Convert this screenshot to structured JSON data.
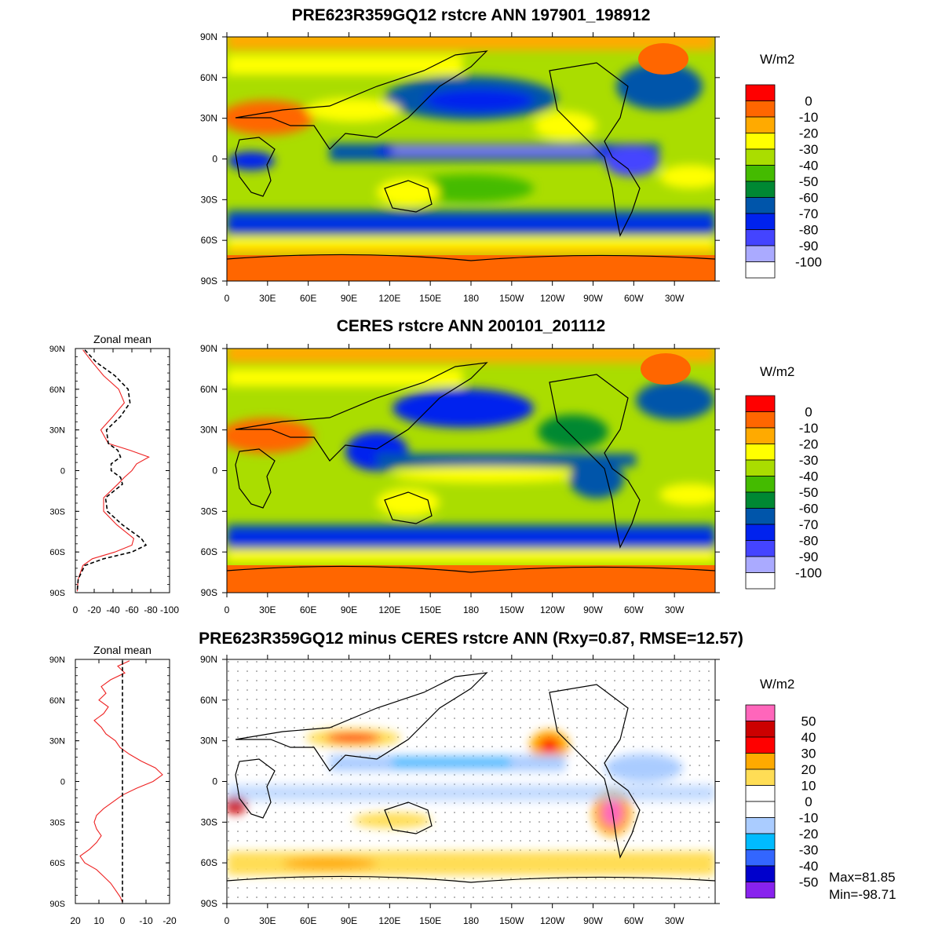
{
  "panels": [
    {
      "title": "PRE623R359GQ12 rstcre ANN 197901_198912",
      "unit": "W/m2",
      "colorbar": {
        "labels": [
          "0",
          "-10",
          "-20",
          "-30",
          "-40",
          "-50",
          "-60",
          "-70",
          "-80",
          "-90",
          "-100"
        ],
        "colors": [
          "#ff0000",
          "#ff6600",
          "#ffaa00",
          "#ffff00",
          "#aadd00",
          "#44bb00",
          "#008833",
          "#0055aa",
          "#0022ee",
          "#4444ff",
          "#aaaaff",
          "#ffffff"
        ]
      }
    },
    {
      "title": "CERES rstcre ANN 200101_201112",
      "unit": "W/m2",
      "colorbar": {
        "labels": [
          "0",
          "-10",
          "-20",
          "-30",
          "-40",
          "-50",
          "-60",
          "-70",
          "-80",
          "-90",
          "-100"
        ],
        "colors": [
          "#ff0000",
          "#ff6600",
          "#ffaa00",
          "#ffff00",
          "#aadd00",
          "#44bb00",
          "#008833",
          "#0055aa",
          "#0022ee",
          "#4444ff",
          "#aaaaff",
          "#ffffff"
        ]
      }
    },
    {
      "title": "PRE623R359GQ12 minus CERES rstcre ANN (Rxy=0.87, RMSE=12.57)",
      "unit": "W/m2",
      "colorbar": {
        "labels": [
          "50",
          "40",
          "30",
          "20",
          "10",
          "0",
          "-10",
          "-20",
          "-30",
          "-40",
          "-50"
        ],
        "colors": [
          "#ff66bb",
          "#cc0000",
          "#ff0000",
          "#ffaa00",
          "#ffdd55",
          "#ffffff",
          "#ffffff",
          "#aaccff",
          "#00bbff",
          "#3366ff",
          "#0000cc",
          "#8822ee"
        ]
      },
      "stats": {
        "max": "Max=81.85",
        "min": "Min=-98.71"
      }
    }
  ],
  "map_axes": {
    "lat_labels": [
      "90N",
      "60N",
      "30N",
      "0",
      "30S",
      "60S",
      "90S"
    ],
    "lon_labels": [
      "0",
      "30E",
      "60E",
      "90E",
      "120E",
      "150E",
      "180",
      "150W",
      "120W",
      "90W",
      "60W",
      "30W"
    ]
  },
  "zonal": [
    {
      "title": "Zonal mean",
      "lat_labels": [
        "90N",
        "60N",
        "30N",
        "0",
        "30S",
        "60S",
        "90S"
      ],
      "x_labels": [
        "0",
        "-20",
        "-40",
        "-60",
        "-80",
        "-100"
      ],
      "xlim": [
        0,
        -100
      ],
      "series": [
        {
          "color": "#ee2222",
          "dash": false,
          "lat": [
            89,
            80,
            70,
            60,
            50,
            40,
            30,
            20,
            15,
            10,
            5,
            0,
            -5,
            -10,
            -20,
            -30,
            -40,
            -50,
            -55,
            -60,
            -65,
            -70,
            -80,
            -89
          ],
          "val": [
            -8,
            -18,
            -30,
            -46,
            -52,
            -40,
            -27,
            -35,
            -58,
            -78,
            -65,
            -60,
            -52,
            -45,
            -30,
            -30,
            -44,
            -62,
            -60,
            -42,
            -18,
            -8,
            -3,
            -2
          ]
        },
        {
          "color": "#000000",
          "dash": true,
          "lat": [
            89,
            80,
            70,
            60,
            50,
            40,
            30,
            20,
            15,
            10,
            5,
            0,
            -5,
            -10,
            -20,
            -30,
            -40,
            -50,
            -55,
            -60,
            -65,
            -70,
            -80,
            -89
          ],
          "val": [
            -10,
            -22,
            -42,
            -56,
            -58,
            -48,
            -33,
            -35,
            -45,
            -48,
            -38,
            -38,
            -48,
            -50,
            -32,
            -34,
            -50,
            -70,
            -75,
            -60,
            -30,
            -10,
            -3,
            -2
          ]
        }
      ]
    },
    {
      "title": "Zonal mean",
      "lat_labels": [
        "90N",
        "60N",
        "30N",
        "0",
        "30S",
        "60S",
        "90S"
      ],
      "x_labels": [
        "20",
        "10",
        "0",
        "-10",
        "-20"
      ],
      "xlim": [
        20,
        -20
      ],
      "series": [
        {
          "color": "#ee2222",
          "dash": false,
          "lat": [
            89,
            85,
            80,
            75,
            70,
            65,
            60,
            55,
            50,
            45,
            40,
            35,
            30,
            25,
            20,
            15,
            10,
            5,
            0,
            -5,
            -10,
            -15,
            -20,
            -25,
            -30,
            -35,
            -40,
            -45,
            -50,
            -55,
            -60,
            -65,
            -70,
            -75,
            -80,
            -85,
            -89
          ],
          "val": [
            -3,
            2,
            -1,
            5,
            9,
            7,
            10,
            6,
            8,
            12,
            9,
            7,
            3,
            1,
            -3,
            -8,
            -14,
            -17,
            -13,
            -6,
            0,
            4,
            8,
            11,
            12,
            11,
            9,
            11,
            14,
            18,
            16,
            11,
            8,
            5,
            3,
            1,
            0
          ]
        },
        {
          "color": "#000000",
          "dash": true,
          "lat": [
            89,
            -89
          ],
          "val": [
            0,
            0
          ]
        }
      ]
    }
  ]
}
